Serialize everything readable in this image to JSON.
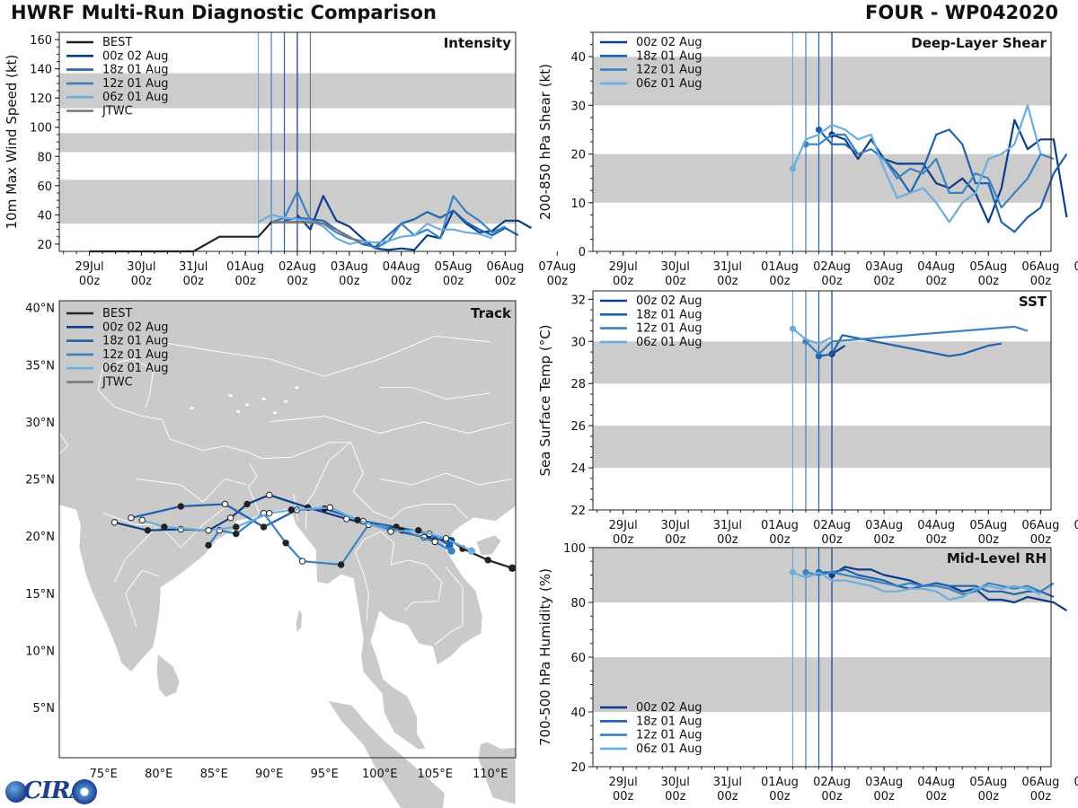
{
  "header": {
    "title": "HWRF Multi-Run Diagnostic Comparison",
    "storm": "FOUR - WP042020"
  },
  "logo": {
    "text": "CIRA"
  },
  "colors": {
    "best": "#222222",
    "jtwc": "#777777",
    "run00z": "#0b3d8c",
    "run18z": "#1f62ae",
    "run12z": "#3b83c4",
    "run06z": "#6aaee0",
    "shade": "#cccccc"
  },
  "time_axis": {
    "labels_top": [
      "29Jul",
      "30Jul",
      "31Jul",
      "01Aug",
      "02Aug",
      "03Aug",
      "04Aug",
      "05Aug",
      "06Aug",
      "07Aug"
    ],
    "labels_bottom": [
      "00z",
      "00z",
      "00z",
      "00z",
      "00z",
      "00z",
      "00z",
      "00z",
      "00z",
      "00z"
    ],
    "range_days": [
      -0.58,
      8.2
    ]
  },
  "chart_data": [
    {
      "id": "intensity",
      "type": "line",
      "title": "Intensity",
      "ylabel": "10m Max Wind Speed (kt)",
      "ylim": [
        15,
        165
      ],
      "yticks": [
        20,
        40,
        60,
        80,
        100,
        120,
        140,
        160
      ],
      "shaded_bands": [
        [
          34,
          64
        ],
        [
          83,
          96
        ],
        [
          113,
          137
        ]
      ],
      "init_lines": [
        3.25,
        3.5,
        3.75,
        4.0
      ],
      "legend": [
        "BEST",
        "00z 02 Aug",
        "18z 01 Aug",
        "12z 01 Aug",
        "06z 01 Aug",
        "JTWC"
      ],
      "series": [
        {
          "name": "BEST",
          "color_key": "best",
          "x": [
            0,
            0.5,
            1,
            1.5,
            2,
            2.5,
            3,
            3.25,
            3.5,
            4,
            4.25
          ],
          "y": [
            15,
            15,
            15,
            15,
            15,
            25,
            25,
            25,
            35,
            35,
            35
          ]
        },
        {
          "name": "00z 02 Aug",
          "color_key": "run00z",
          "x": [
            4,
            4.25,
            4.5,
            4.75,
            5,
            5.25,
            5.5,
            5.75,
            6,
            6.25,
            6.5,
            6.75,
            7,
            7.25,
            7.5,
            7.75,
            8,
            8.25,
            8.5
          ],
          "y": [
            40,
            30,
            53,
            36,
            32,
            24,
            17,
            16,
            17,
            16,
            26,
            24,
            43,
            34,
            28,
            29,
            36,
            36,
            31
          ]
        },
        {
          "name": "18z 01 Aug",
          "color_key": "run18z",
          "x": [
            3.75,
            4,
            4.25,
            4.5,
            4.75,
            5,
            5.25,
            5.5,
            5.75,
            6,
            6.25,
            6.5,
            6.75,
            7,
            7.25,
            7.5,
            7.75,
            8,
            8.25
          ],
          "y": [
            36,
            38,
            37,
            36,
            30,
            25,
            20,
            18,
            26,
            34,
            37,
            42,
            38,
            43,
            35,
            30,
            26,
            31,
            26
          ]
        },
        {
          "name": "12z 01 Aug",
          "color_key": "run12z",
          "x": [
            3.5,
            3.75,
            4,
            4.25,
            4.5,
            4.75,
            5,
            5.25,
            5.5,
            5.75,
            6,
            6.25,
            6.5,
            6.75,
            7,
            7.25,
            7.5,
            7.75,
            8
          ],
          "y": [
            35,
            38,
            56,
            36,
            34,
            28,
            24,
            22,
            17,
            22,
            34,
            26,
            30,
            24,
            53,
            42,
            36,
            28,
            32
          ]
        },
        {
          "name": "06z 01 Aug",
          "color_key": "run06z",
          "x": [
            3.25,
            3.5,
            3.75,
            4,
            4.25,
            4.5,
            4.75,
            5,
            5.25,
            5.5,
            5.75,
            6,
            6.25,
            6.5,
            6.75,
            7,
            7.25,
            7.5,
            7.75
          ],
          "y": [
            35,
            40,
            38,
            37,
            36,
            32,
            24,
            20,
            22,
            21,
            22,
            25,
            26,
            34,
            30,
            30,
            28,
            27,
            24
          ]
        },
        {
          "name": "JTWC",
          "color_key": "jtwc",
          "x": [
            3.5,
            3.75,
            4,
            4.25,
            4.5,
            4.75,
            5,
            5.25
          ],
          "y": [
            35,
            35,
            35,
            35,
            34,
            30,
            25,
            20
          ]
        }
      ]
    },
    {
      "id": "shear",
      "type": "line",
      "title": "Deep-Layer Shear",
      "ylabel": "200-850 hPa Shear (kt)",
      "ylim": [
        0,
        45
      ],
      "yticks": [
        0,
        10,
        20,
        30,
        40
      ],
      "shaded_bands": [
        [
          10,
          20
        ],
        [
          30,
          40
        ]
      ],
      "init_lines": [
        3.25,
        3.5,
        3.75,
        4.0
      ],
      "legend": [
        "00z 02 Aug",
        "18z 01 Aug",
        "12z 01 Aug",
        "06z 01 Aug"
      ],
      "series": [
        {
          "name": "00z 02 Aug",
          "color_key": "run00z",
          "x": [
            4,
            4.25,
            4.5,
            4.75,
            5,
            5.25,
            5.5,
            5.75,
            6,
            6.25,
            6.5,
            6.75,
            7,
            7.25,
            7.5,
            7.75,
            8,
            8.25,
            8.5
          ],
          "y": [
            24,
            23,
            19,
            23,
            19,
            18,
            18,
            18,
            14,
            13,
            15,
            12,
            6,
            13,
            27,
            21,
            23,
            23,
            7
          ]
        },
        {
          "name": "18z 01 Aug",
          "color_key": "run18z",
          "x": [
            3.75,
            4,
            4.25,
            4.5,
            4.75,
            5,
            5.25,
            5.5,
            5.75,
            6,
            6.25,
            6.5,
            6.75,
            7,
            7.25,
            7.5,
            7.75,
            8,
            8.25,
            8.5
          ],
          "y": [
            25,
            22,
            22,
            20,
            21,
            19,
            16,
            12,
            17,
            24,
            25,
            22,
            14,
            14,
            6,
            4,
            7,
            9,
            16,
            20
          ]
        },
        {
          "name": "12z 01 Aug",
          "color_key": "run12z",
          "x": [
            3.5,
            3.75,
            4,
            4.25,
            4.5,
            4.75,
            5,
            5.25,
            5.5,
            5.75,
            6,
            6.25,
            6.5,
            6.75,
            7,
            7.25,
            7.5,
            7.75,
            8,
            8.25
          ],
          "y": [
            22,
            22,
            24,
            24,
            20,
            21,
            19,
            15,
            17,
            16,
            19,
            12,
            12,
            16,
            15,
            9,
            12,
            15,
            20,
            19
          ]
        },
        {
          "name": "06z 01 Aug",
          "color_key": "run06z",
          "x": [
            3.25,
            3.5,
            3.75,
            4,
            4.25,
            4.5,
            4.75,
            5,
            5.25,
            5.5,
            5.75,
            6,
            6.25,
            6.5,
            6.75,
            7,
            7.25,
            7.5,
            7.75,
            8
          ],
          "y": [
            17,
            23,
            24,
            26,
            25,
            23,
            24,
            17,
            11,
            12,
            13,
            10,
            6,
            10,
            12,
            19,
            20,
            22,
            30,
            20
          ]
        }
      ]
    },
    {
      "id": "sst",
      "type": "line",
      "title": "SST",
      "ylabel": "Sea Surface Temp (°C)",
      "ylim": [
        22,
        32.4
      ],
      "yticks": [
        22,
        24,
        26,
        28,
        30,
        32
      ],
      "shaded_bands": [
        [
          24,
          26
        ],
        [
          28,
          30
        ]
      ],
      "init_lines": [
        3.25,
        3.5,
        3.75,
        4.0
      ],
      "legend": [
        "00z 02 Aug",
        "18z 01 Aug",
        "12z 01 Aug",
        "06z 01 Aug"
      ],
      "series": [
        {
          "name": "00z 02 Aug",
          "color_key": "run00z",
          "x": [
            4,
            4.25
          ],
          "y": [
            29.4,
            29.8
          ]
        },
        {
          "name": "18z 01 Aug",
          "color_key": "run18z",
          "x": [
            3.75,
            4,
            4.2,
            6.25,
            6.5,
            6.75,
            7,
            7.25
          ],
          "y": [
            29.3,
            29.4,
            30.3,
            29.3,
            29.4,
            29.6,
            29.8,
            29.9
          ]
        },
        {
          "name": "12z 01 Aug",
          "color_key": "run12z",
          "x": [
            3.5,
            3.75,
            4,
            7.5,
            7.75
          ],
          "y": [
            30.0,
            29.4,
            30.0,
            30.7,
            30.5
          ]
        },
        {
          "name": "06z 01 Aug",
          "color_key": "run06z",
          "x": [
            3.25,
            3.5,
            3.75,
            4
          ],
          "y": [
            30.6,
            30.1,
            29.9,
            30.2
          ]
        }
      ]
    },
    {
      "id": "rh",
      "type": "line",
      "title": "Mid-Level RH",
      "ylabel": "700-500 hPa Humidity (%)",
      "ylim": [
        20,
        100
      ],
      "yticks": [
        20,
        40,
        60,
        80,
        100
      ],
      "shaded_bands": [
        [
          40,
          60
        ],
        [
          80,
          100
        ]
      ],
      "init_lines": [
        3.25,
        3.5,
        3.75,
        4.0
      ],
      "legend": [
        "00z 02 Aug",
        "18z 01 Aug",
        "12z 01 Aug",
        "06z 01 Aug"
      ],
      "series": [
        {
          "name": "00z 02 Aug",
          "color_key": "run00z",
          "x": [
            4,
            4.25,
            4.5,
            4.75,
            5,
            5.25,
            5.5,
            5.75,
            6,
            6.25,
            6.5,
            6.75,
            7,
            7.25,
            7.5,
            7.75,
            8,
            8.25,
            8.5
          ],
          "y": [
            90,
            93,
            92,
            92,
            90,
            89,
            88,
            86,
            87,
            86,
            84,
            85,
            81,
            81,
            80,
            82,
            81,
            80,
            77
          ]
        },
        {
          "name": "18z 01 Aug",
          "color_key": "run18z",
          "x": [
            3.75,
            4,
            4.25,
            4.5,
            4.75,
            5,
            5.25,
            5.5,
            5.75,
            6,
            6.25,
            6.5,
            6.75,
            7,
            7.25,
            7.5,
            7.75,
            8,
            8.25
          ],
          "y": [
            91,
            91,
            92,
            90,
            89,
            88,
            86,
            85,
            86,
            87,
            86,
            86,
            86,
            84,
            84,
            83,
            84,
            84,
            82
          ]
        },
        {
          "name": "12z 01 Aug",
          "color_key": "run12z",
          "x": [
            3.5,
            3.75,
            4,
            4.25,
            4.5,
            4.75,
            5,
            5.25,
            5.5,
            5.75,
            6,
            6.25,
            6.5,
            6.75,
            7,
            7.25,
            7.5,
            7.75,
            8,
            8.25
          ],
          "y": [
            91,
            90,
            91,
            90,
            89,
            88,
            87,
            86,
            87,
            86,
            86,
            85,
            83,
            84,
            87,
            86,
            85,
            86,
            84,
            87
          ]
        },
        {
          "name": "06z 01 Aug",
          "color_key": "run06z",
          "x": [
            3.25,
            3.5,
            3.75,
            4,
            4.25,
            4.5,
            4.75,
            5,
            5.25,
            5.5,
            5.75,
            6,
            6.25,
            6.5,
            6.75,
            7,
            7.25,
            7.5,
            7.75,
            8
          ],
          "y": [
            91,
            89,
            91,
            88,
            88,
            87,
            86,
            84,
            84,
            85,
            85,
            84,
            81,
            82,
            85,
            86,
            85,
            86,
            85,
            83
          ]
        }
      ]
    },
    {
      "id": "track",
      "type": "scatter",
      "title": "Track",
      "xlim": [
        71,
        112.3
      ],
      "ylim": [
        0.6,
        40.6
      ],
      "lon_ticks": [
        75,
        80,
        85,
        90,
        95,
        100,
        105,
        110
      ],
      "lon_labels": [
        "75°E",
        "80°E",
        "85°E",
        "90°E",
        "95°E",
        "100°E",
        "105°E",
        "110°E"
      ],
      "lat_ticks": [
        5,
        10,
        15,
        20,
        25,
        30,
        35,
        40
      ],
      "lat_labels": [
        "5°N",
        "10°N",
        "15°N",
        "20°N",
        "25°N",
        "30°N",
        "35°N",
        "40°N"
      ],
      "legend": [
        "BEST",
        "00z 02 Aug",
        "18z 01 Aug",
        "12z 01 Aug",
        "06z 01 Aug",
        "JTWC"
      ],
      "series": [
        {
          "name": "BEST",
          "color_key": "best",
          "lon": [
            112,
            109.8,
            107.5,
            106.5
          ],
          "lat": [
            17.2,
            17.9,
            18.9,
            19.6
          ]
        },
        {
          "name": "00z 02 Aug",
          "color_key": "run00z",
          "lon": [
            106.4,
            104,
            101,
            97,
            93.5,
            90,
            88,
            86.5,
            84.5,
            82,
            79,
            76
          ],
          "lat": [
            19.6,
            19.9,
            20.6,
            21.5,
            22.5,
            23.6,
            22.8,
            21.6,
            20.5,
            20.6,
            20.5,
            21.2
          ]
        },
        {
          "name": "18z 01 Aug",
          "color_key": "run18z",
          "lon": [
            106.3,
            104.5,
            101.5,
            98.5,
            95,
            92.5,
            89.5,
            86,
            82,
            77.5
          ],
          "lat": [
            19.2,
            20.2,
            20.8,
            21.3,
            22.4,
            22.3,
            20.8,
            22.8,
            22.6,
            21.6
          ]
        },
        {
          "name": "12z 01 Aug",
          "color_key": "run12z",
          "lon": [
            106.5,
            105,
            102,
            99,
            96.5,
            93,
            91.5,
            89.5,
            87,
            85.5,
            84.5
          ],
          "lat": [
            18.7,
            19.5,
            20.5,
            21.0,
            17.5,
            17.8,
            19.4,
            22.0,
            20.2,
            20.5,
            19.2
          ]
        },
        {
          "name": "06z 01 Aug",
          "color_key": "run06z",
          "lon": [
            108.3,
            106,
            103.5,
            101,
            98,
            95.5,
            92,
            90,
            87,
            84.5,
            80.5,
            78.5
          ],
          "lat": [
            18.7,
            19.8,
            20.5,
            20.4,
            21.4,
            22.5,
            22.3,
            22.0,
            20.8,
            20.5,
            20.8,
            21.4
          ]
        }
      ]
    }
  ]
}
